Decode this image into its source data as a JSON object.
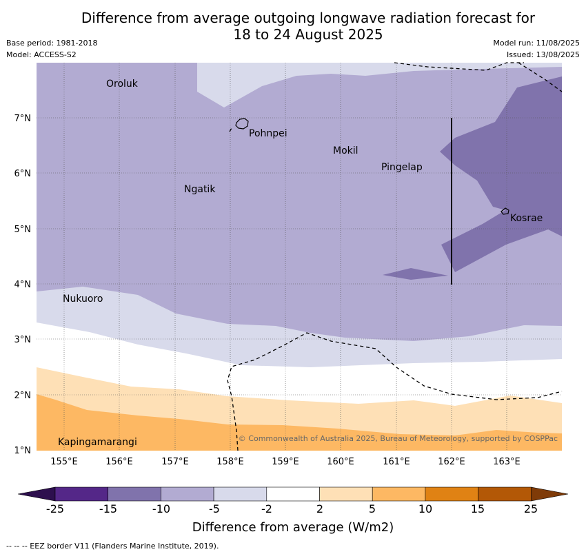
{
  "header": {
    "title_line1": "Difference from average outgoing longwave radiation forecast for",
    "title_line2": "18 to 24 August 2025",
    "base_period": "Base period: 1981-2018",
    "model": "Model: ACCESS-S2",
    "model_run": "Model run: 11/08/2025",
    "issued": "Issued: 13/08/2025"
  },
  "map": {
    "lon_labels": [
      "155°E",
      "156°E",
      "157°E",
      "158°E",
      "159°E",
      "160°E",
      "161°E",
      "162°E",
      "163°E"
    ],
    "lat_labels": [
      "7°N",
      "6°N",
      "5°N",
      "4°N",
      "3°N",
      "2°N",
      "1°N"
    ],
    "places": [
      "Oroluk",
      "Pohnpei",
      "Mokil",
      "Pingelap",
      "Ngatik",
      "Kosrae",
      "Nukuoro",
      "Kapingamarangi"
    ],
    "copyright": "© Commonwealth of Australia 2025, Bureau of Meteorology, supported by COSPPac"
  },
  "colorbar": {
    "ticks": [
      "-25",
      "-15",
      "-10",
      "-5",
      "-2",
      "2",
      "5",
      "10",
      "15",
      "25"
    ],
    "title": "Difference from average (W/m2)",
    "colors": [
      "#2d0f4e",
      "#542788",
      "#8073ac",
      "#b2abd2",
      "#d8daeb",
      "#ffffff",
      "#fee0b6",
      "#fdb863",
      "#e08214",
      "#b35806",
      "#7f3b08"
    ]
  },
  "footer": "--  --  -- EEZ border V11 (Flanders Marine Institute, 2019)."
}
